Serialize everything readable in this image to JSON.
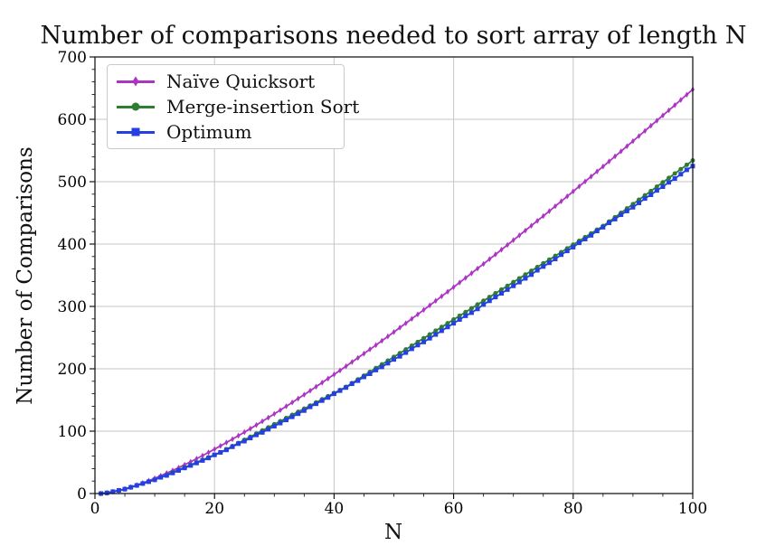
{
  "chart_data": {
    "type": "line",
    "title": "Number of comparisons needed to sort array of length N",
    "xlabel": "N",
    "ylabel": "Number of Comparisons",
    "xlim": [
      0,
      100
    ],
    "ylim": [
      0,
      700
    ],
    "x_major_ticks": [
      0,
      20,
      40,
      60,
      80,
      100
    ],
    "y_major_ticks": [
      0,
      100,
      200,
      300,
      400,
      500,
      600,
      700
    ],
    "x_minor_step": 5,
    "y_minor_step": 20,
    "grid": "major",
    "grid_color": "#c6c6c6",
    "legend_position": "upper-left",
    "x_start": 1,
    "x_step": 1,
    "series": [
      {
        "name": "Naïve Quicksort",
        "color": "#ac35c3",
        "marker": "thin-diamond",
        "values": [
          0,
          1,
          2.7,
          4.8,
          7.4,
          10.3,
          13.5,
          16.9,
          20.6,
          24.4,
          28.5,
          32.7,
          37,
          41.5,
          46.2,
          50.9,
          55.8,
          60.8,
          65.9,
          71.1,
          76.4,
          81.8,
          87.2,
          92.8,
          98.4,
          104.1,
          109.9,
          115.8,
          121.7,
          127.7,
          133.7,
          139.9,
          146,
          152.3,
          158.6,
          164.9,
          171.3,
          177.8,
          184.3,
          190.8,
          197.4,
          204.1,
          210.8,
          217.5,
          224.3,
          231.2,
          238,
          245,
          251.9,
          258.9,
          266,
          273,
          280.1,
          287.3,
          294.5,
          301.7,
          309,
          316.3,
          323.6,
          330.9,
          338.3,
          345.8,
          353.2,
          360.7,
          368.2,
          375.8,
          383.4,
          391,
          398.6,
          406.3,
          414,
          421.7,
          429.4,
          437.2,
          445,
          452.8,
          460.7,
          468.6,
          476.5,
          484.4,
          492.4,
          500.3,
          508.3,
          516.4,
          524.4,
          532.5,
          540.6,
          548.7,
          556.9,
          565,
          573.2,
          581.4,
          589.7,
          597.9,
          606.2,
          614.5,
          622.8,
          631.1,
          639.5,
          647.8
        ]
      },
      {
        "name": "Merge-insertion Sort",
        "color": "#2e7d32",
        "marker": "circle",
        "values": [
          0,
          1,
          3,
          5,
          7,
          10,
          13,
          16,
          19,
          22,
          26,
          30,
          34,
          38,
          42,
          46,
          50,
          54,
          58,
          62,
          66,
          71,
          76,
          81,
          86,
          91,
          96,
          101,
          106,
          111,
          116,
          121,
          126,
          131,
          136,
          141,
          146,
          151,
          156,
          161,
          166,
          171,
          177,
          183,
          189,
          195,
          201,
          207,
          213,
          219,
          225,
          231,
          237,
          243,
          249,
          255,
          261,
          267,
          273,
          279,
          285,
          291,
          297,
          303,
          309,
          315,
          321,
          327,
          333,
          339,
          345,
          351,
          357,
          363,
          369,
          375,
          381,
          387,
          393,
          399,
          405,
          411,
          417,
          423,
          429,
          436,
          443,
          450,
          457,
          464,
          471,
          478,
          485,
          492,
          499,
          506,
          513,
          520,
          527,
          534
        ]
      },
      {
        "name": "Optimum",
        "color": "#2440e0",
        "marker": "square",
        "values": [
          0,
          1,
          3,
          5,
          7,
          10,
          13,
          16,
          19,
          22,
          26,
          29,
          33,
          37,
          41,
          45,
          49,
          53,
          57,
          62,
          66,
          70,
          75,
          80,
          84,
          89,
          94,
          98,
          103,
          108,
          113,
          118,
          123,
          128,
          133,
          139,
          144,
          149,
          154,
          160,
          165,
          170,
          176,
          181,
          187,
          192,
          198,
          203,
          209,
          215,
          220,
          226,
          232,
          238,
          243,
          249,
          255,
          261,
          267,
          273,
          279,
          285,
          290,
          296,
          303,
          309,
          315,
          321,
          327,
          333,
          339,
          345,
          351,
          358,
          364,
          370,
          376,
          383,
          389,
          395,
          402,
          408,
          414,
          421,
          427,
          434,
          440,
          447,
          453,
          459,
          466,
          473,
          479,
          486,
          492,
          499,
          505,
          512,
          519,
          525
        ]
      }
    ]
  }
}
